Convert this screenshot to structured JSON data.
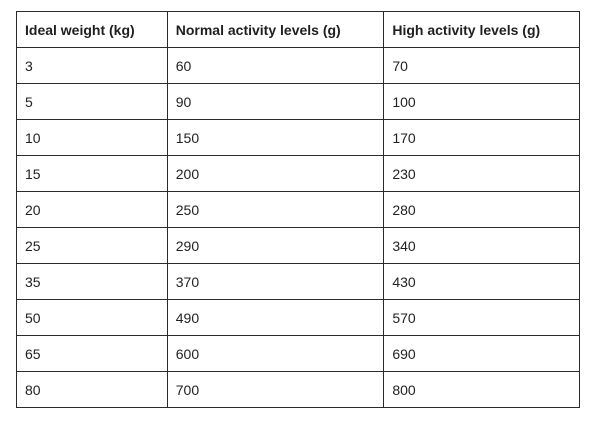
{
  "table": {
    "headers": [
      "Ideal weight (kg)",
      "Normal activity levels (g)",
      "High activity levels (g)"
    ],
    "rows": [
      [
        "3",
        "60",
        "70"
      ],
      [
        "5",
        "90",
        "100"
      ],
      [
        "10",
        "150",
        "170"
      ],
      [
        "15",
        "200",
        "230"
      ],
      [
        "20",
        "250",
        "280"
      ],
      [
        "25",
        "290",
        "340"
      ],
      [
        "35",
        "370",
        "430"
      ],
      [
        "50",
        "490",
        "570"
      ],
      [
        "65",
        "600",
        "690"
      ],
      [
        "80",
        "700",
        "800"
      ]
    ]
  }
}
